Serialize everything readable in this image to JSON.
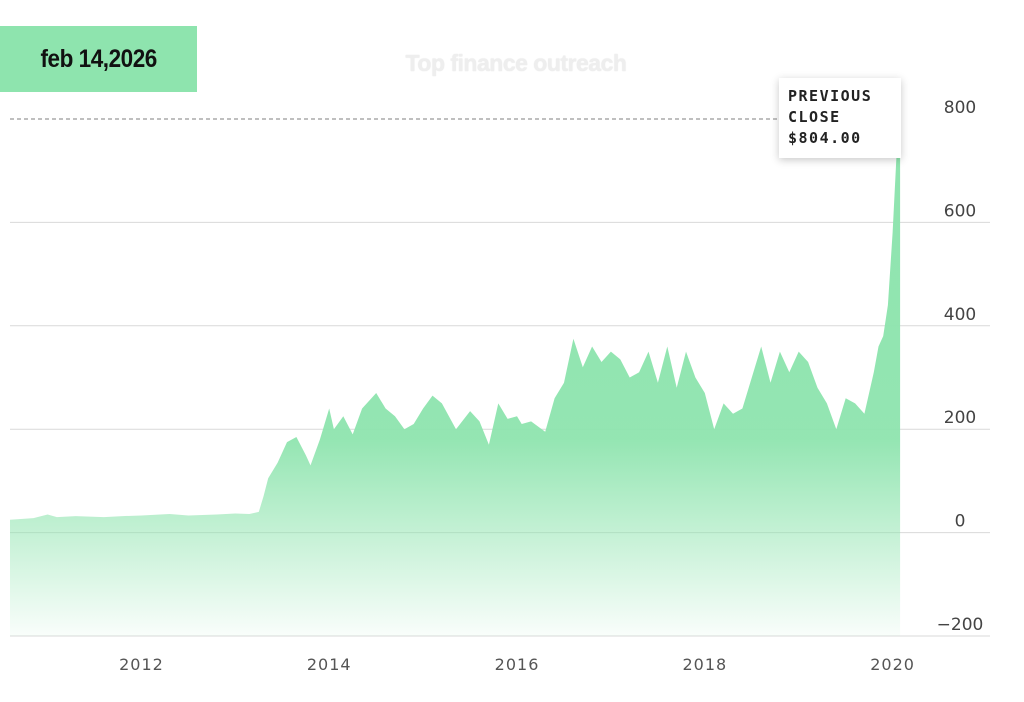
{
  "header": {
    "date_label": "feb 14,2026",
    "watermark": "Top finance outreach"
  },
  "tooltip": {
    "line1": "PREVIOUS",
    "line2": "CLOSE",
    "value": "$804.00"
  },
  "colors": {
    "badge": "#8ee4ae",
    "area_fill": "#8ee4ae",
    "gridline": "#d9d9d9",
    "reference_line": "#aaaaaa"
  },
  "chart_data": {
    "type": "area",
    "title": "",
    "xlabel": "",
    "ylabel": "",
    "xlim": [
      2010.6,
      2020.1
    ],
    "ylim": [
      -200,
      800
    ],
    "y_ticks": [
      800,
      600,
      400,
      200,
      0,
      -200
    ],
    "y_tick_labels": [
      "800",
      "600",
      "400",
      "200",
      "0",
      "−200"
    ],
    "x_ticks": [
      2012,
      2014,
      2016,
      2018,
      2020
    ],
    "x_tick_labels": [
      "2012",
      "2014",
      "2016",
      "2018",
      "2020"
    ],
    "reference_line": {
      "value": 804,
      "label": "PREVIOUS CLOSE $804.00",
      "style": "dashed"
    },
    "grid": true,
    "legend": "none",
    "series": [
      {
        "x": [
          2010.6,
          2010.85,
          2011.0,
          2011.1,
          2011.3,
          2011.6,
          2011.8,
          2012.0,
          2012.2,
          2012.3,
          2012.5,
          2012.8,
          2013.0,
          2013.15,
          2013.25,
          2013.3,
          2013.35,
          2013.45,
          2013.55,
          2013.65,
          2013.75,
          2013.8,
          2013.9,
          2014.0,
          2014.05,
          2014.15,
          2014.25,
          2014.35,
          2014.5,
          2014.6,
          2014.7,
          2014.8,
          2014.9,
          2015.0,
          2015.1,
          2015.2,
          2015.35,
          2015.5,
          2015.6,
          2015.7,
          2015.8,
          2015.9,
          2016.0,
          2016.05,
          2016.15,
          2016.3,
          2016.4,
          2016.5,
          2016.6,
          2016.7,
          2016.8,
          2016.9,
          2017.0,
          2017.1,
          2017.2,
          2017.3,
          2017.4,
          2017.5,
          2017.6,
          2017.7,
          2017.8,
          2017.9,
          2018.0,
          2018.1,
          2018.2,
          2018.3,
          2018.4,
          2018.5,
          2018.6,
          2018.7,
          2018.8,
          2018.9,
          2019.0,
          2019.1,
          2019.2,
          2019.3,
          2019.4,
          2019.5,
          2019.6,
          2019.7,
          2019.8,
          2019.85,
          2019.9,
          2019.95,
          2020.0,
          2020.05,
          2020.08
        ],
        "values": [
          25,
          28,
          35,
          30,
          32,
          30,
          32,
          33,
          35,
          36,
          33,
          35,
          37,
          36,
          40,
          70,
          105,
          135,
          175,
          185,
          150,
          130,
          180,
          240,
          200,
          225,
          190,
          240,
          270,
          240,
          225,
          200,
          210,
          240,
          265,
          250,
          200,
          235,
          215,
          170,
          250,
          220,
          225,
          210,
          215,
          195,
          260,
          290,
          375,
          320,
          360,
          330,
          350,
          335,
          300,
          310,
          350,
          290,
          360,
          280,
          350,
          300,
          270,
          200,
          250,
          230,
          240,
          300,
          360,
          290,
          350,
          310,
          350,
          330,
          280,
          250,
          200,
          260,
          250,
          230,
          310,
          360,
          380,
          440,
          580,
          760,
          804
        ]
      }
    ]
  }
}
